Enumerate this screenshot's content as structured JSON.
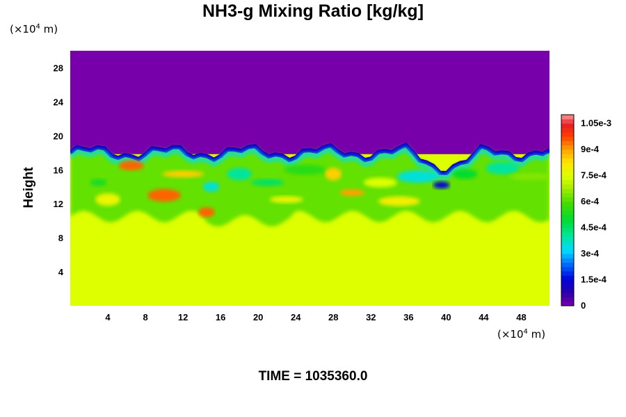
{
  "chart_data": {
    "type": "heatmap",
    "title": "NH3-g Mixing Ratio [kg/kg]",
    "ylabel": "Height",
    "yunit_base": "(×10",
    "yunit_exp": "4",
    "yunit_tail": " m)",
    "xunit_base": "(×10",
    "xunit_exp": "4",
    "xunit_tail": " m)",
    "xlim": [
      0,
      51
    ],
    "ylim": [
      0,
      30
    ],
    "x_ticks": [
      "4",
      "8",
      "12",
      "16",
      "20",
      "24",
      "28",
      "32",
      "36",
      "40",
      "44",
      "48"
    ],
    "x_tick_values": [
      4,
      8,
      12,
      16,
      20,
      24,
      28,
      32,
      36,
      40,
      44,
      48
    ],
    "y_ticks": [
      "4",
      "8",
      "12",
      "16",
      "20",
      "24",
      "28"
    ],
    "y_tick_values": [
      4,
      8,
      12,
      16,
      20,
      24,
      28
    ],
    "colorbar": {
      "range": [
        0,
        0.0011
      ],
      "labels": [
        "0",
        "1.5e-4",
        "3e-4",
        "4.5e-4",
        "6e-4",
        "7.5e-4",
        "9e-4",
        "1.05e-3"
      ],
      "label_values": [
        0,
        0.00015,
        0.0003,
        0.00045,
        0.0006,
        0.00075,
        0.0009,
        0.00105
      ]
    },
    "regions": {
      "upper_value": 0,
      "lower_value": 0.00075,
      "top_boundary_height": 18,
      "mixed_layer_bottom_height": 10.5
    },
    "colors": {
      "upper": "#7700aa",
      "lower": "#ddff00"
    },
    "time_label": "TIME = 1035360.0"
  }
}
